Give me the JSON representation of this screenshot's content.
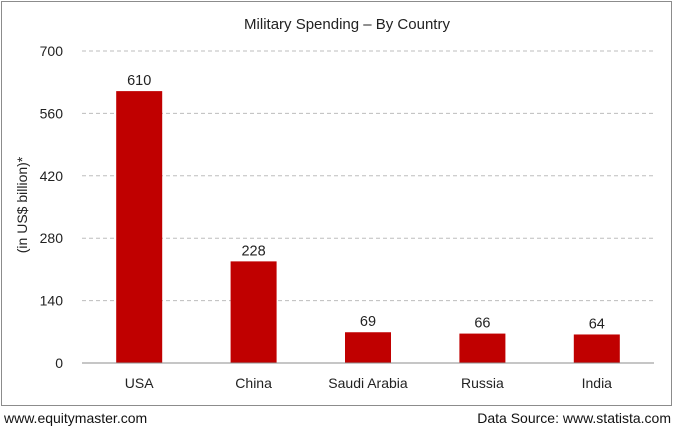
{
  "chart_data": {
    "type": "bar",
    "title": "Military Spending – By Country",
    "ylabel": "(in US$ billion)*",
    "xlabel": "",
    "categories": [
      "USA",
      "China",
      "Saudi Arabia",
      "Russia",
      "India"
    ],
    "values": [
      610,
      228,
      69,
      66,
      64
    ],
    "ylim": [
      0,
      700
    ],
    "yticks": [
      0,
      140,
      280,
      420,
      560,
      700
    ],
    "grid": true,
    "bar_color": "#c00000"
  },
  "footer": {
    "left": "www.equitymaster.com",
    "right": "Data Source: www.statista.com"
  }
}
